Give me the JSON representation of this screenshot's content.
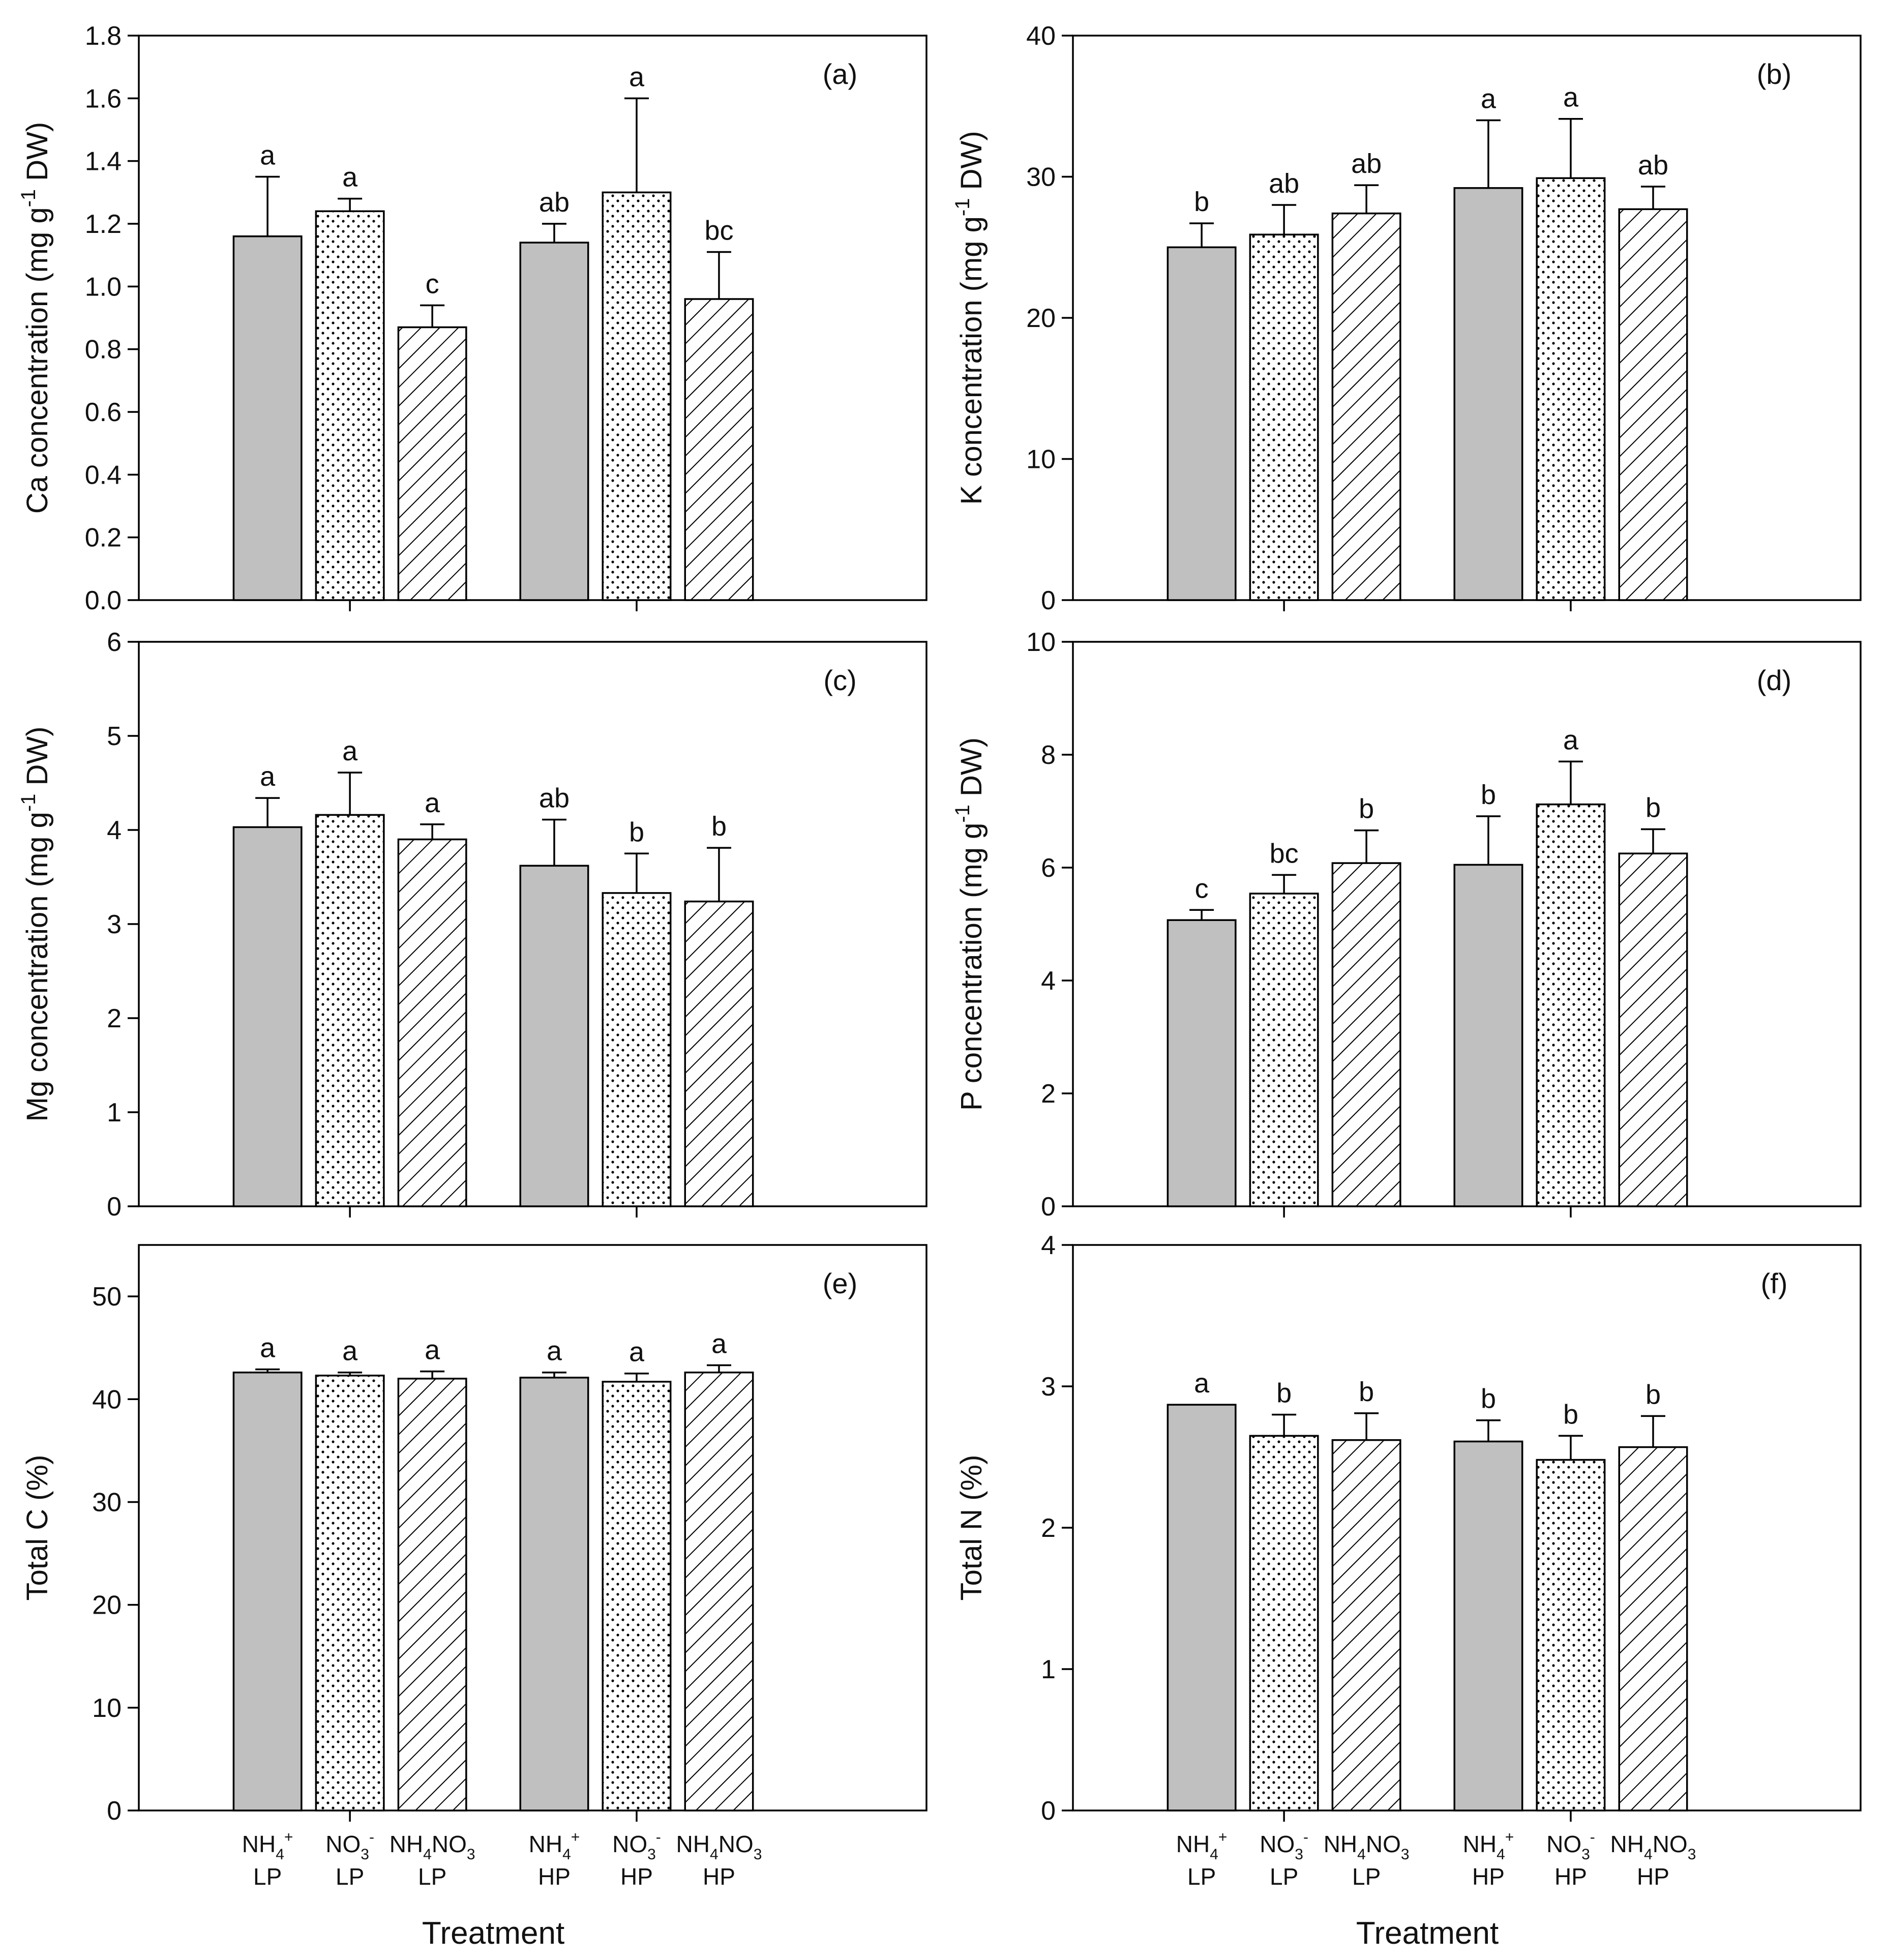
{
  "figure": {
    "xlabel": "Treatment",
    "categories": [
      {
        "base": "NH",
        "sub": "4",
        "sup": "+",
        "tail": "",
        "sub2": "",
        "line2": "LP"
      },
      {
        "base": "NO",
        "sub": "3",
        "sup": "-",
        "tail": "",
        "sub2": "",
        "line2": "LP"
      },
      {
        "base": "NH",
        "sub": "4",
        "sup": "",
        "tail": "NO",
        "sub2": "3",
        "line2": "LP"
      },
      {
        "base": "NH",
        "sub": "4",
        "sup": "+",
        "tail": "",
        "sub2": "",
        "line2": "HP"
      },
      {
        "base": "NO",
        "sub": "3",
        "sup": "-",
        "tail": "",
        "sub2": "",
        "line2": "HP"
      },
      {
        "base": "NH",
        "sub": "4",
        "sup": "",
        "tail": "NO",
        "sub2": "3",
        "line2": "HP"
      }
    ],
    "fill_styles": [
      "solid-grey",
      "dotted",
      "hatched",
      "solid-grey",
      "dotted",
      "hatched"
    ],
    "colors": {
      "bar_grey": "#c0c0c0",
      "stroke": "#000000",
      "background": "#ffffff"
    }
  },
  "chart_data": [
    {
      "type": "bar",
      "panel": "(a)",
      "ylabel": {
        "pre": "Ca concentration (mg g",
        "sup": "-1",
        "post": " DW)"
      },
      "ylim": [
        0,
        1.8
      ],
      "yticks": [
        "0.0",
        "0.2",
        "0.4",
        "0.6",
        "0.8",
        "1.0",
        "1.2",
        "1.4",
        "1.6",
        "1.8"
      ],
      "categories": [
        "NH4+ LP",
        "NO3- LP",
        "NH4NO3 LP",
        "NH4+ HP",
        "NO3- HP",
        "NH4NO3 HP"
      ],
      "values": [
        1.16,
        1.24,
        0.87,
        1.14,
        1.3,
        0.96
      ],
      "errors": [
        0.19,
        0.04,
        0.07,
        0.06,
        0.3,
        0.15
      ],
      "letters": [
        "a",
        "a",
        "c",
        "ab",
        "a",
        "bc"
      ]
    },
    {
      "type": "bar",
      "panel": "(b)",
      "ylabel": {
        "pre": "K concentration (mg g",
        "sup": "-1",
        "post": " DW)"
      },
      "ylim": [
        0,
        40
      ],
      "yticks": [
        "0",
        "10",
        "20",
        "30",
        "40"
      ],
      "categories": [
        "NH4+ LP",
        "NO3- LP",
        "NH4NO3 LP",
        "NH4+ HP",
        "NO3- HP",
        "NH4NO3 HP"
      ],
      "values": [
        25.0,
        25.9,
        27.4,
        29.2,
        29.9,
        27.7
      ],
      "errors": [
        1.7,
        2.1,
        2.0,
        4.8,
        4.2,
        1.6
      ],
      "letters": [
        "b",
        "ab",
        "ab",
        "a",
        "a",
        "ab"
      ]
    },
    {
      "type": "bar",
      "panel": "(c)",
      "ylabel": {
        "pre": "Mg concentration (mg g",
        "sup": "-1",
        "post": " DW)"
      },
      "ylim": [
        0,
        6
      ],
      "yticks": [
        "0",
        "1",
        "2",
        "3",
        "4",
        "5",
        "6"
      ],
      "categories": [
        "NH4+ LP",
        "NO3- LP",
        "NH4NO3 LP",
        "NH4+ HP",
        "NO3- HP",
        "NH4NO3 HP"
      ],
      "values": [
        4.03,
        4.16,
        3.9,
        3.62,
        3.33,
        3.24
      ],
      "errors": [
        0.31,
        0.45,
        0.16,
        0.49,
        0.42,
        0.57
      ],
      "letters": [
        "a",
        "a",
        "a",
        "ab",
        "b",
        "b"
      ]
    },
    {
      "type": "bar",
      "panel": "(d)",
      "ylabel": {
        "pre": "P concentration (mg g",
        "sup": "-1",
        "post": " DW)"
      },
      "ylim": [
        0,
        10
      ],
      "yticks": [
        "0",
        "2",
        "4",
        "6",
        "8",
        "10"
      ],
      "categories": [
        "NH4+ LP",
        "NO3- LP",
        "NH4NO3 LP",
        "NH4+ HP",
        "NO3- HP",
        "NH4NO3 HP"
      ],
      "values": [
        5.07,
        5.54,
        6.08,
        6.05,
        7.12,
        6.25
      ],
      "errors": [
        0.18,
        0.33,
        0.58,
        0.86,
        0.76,
        0.43
      ],
      "letters": [
        "c",
        "bc",
        "b",
        "b",
        "a",
        "b"
      ]
    },
    {
      "type": "bar",
      "panel": "(e)",
      "ylabel": {
        "pre": "Total C (%)",
        "sup": "",
        "post": ""
      },
      "ylim": [
        0,
        55
      ],
      "yticks": [
        "0",
        "10",
        "20",
        "30",
        "40",
        "50"
      ],
      "categories": [
        "NH4+ LP",
        "NO3- LP",
        "NH4NO3 LP",
        "NH4+ HP",
        "NO3- HP",
        "NH4NO3 HP"
      ],
      "values": [
        42.6,
        42.3,
        42.0,
        42.1,
        41.7,
        42.6
      ],
      "errors": [
        0.3,
        0.3,
        0.7,
        0.5,
        0.8,
        0.7
      ],
      "letters": [
        "a",
        "a",
        "a",
        "a",
        "a",
        "a"
      ]
    },
    {
      "type": "bar",
      "panel": "(f)",
      "ylabel": {
        "pre": "Total N (%)",
        "sup": "",
        "post": ""
      },
      "ylim": [
        0,
        4
      ],
      "yticks": [
        "0",
        "1",
        "2",
        "3",
        "4"
      ],
      "categories": [
        "NH4+ LP",
        "NO3- LP",
        "NH4NO3 LP",
        "NH4+ HP",
        "NO3- HP",
        "NH4NO3 HP"
      ],
      "values": [
        2.87,
        2.65,
        2.62,
        2.61,
        2.48,
        2.57
      ],
      "errors": [
        0.0,
        0.15,
        0.19,
        0.15,
        0.17,
        0.22
      ],
      "letters": [
        "a",
        "b",
        "b",
        "b",
        "b",
        "b"
      ]
    }
  ]
}
